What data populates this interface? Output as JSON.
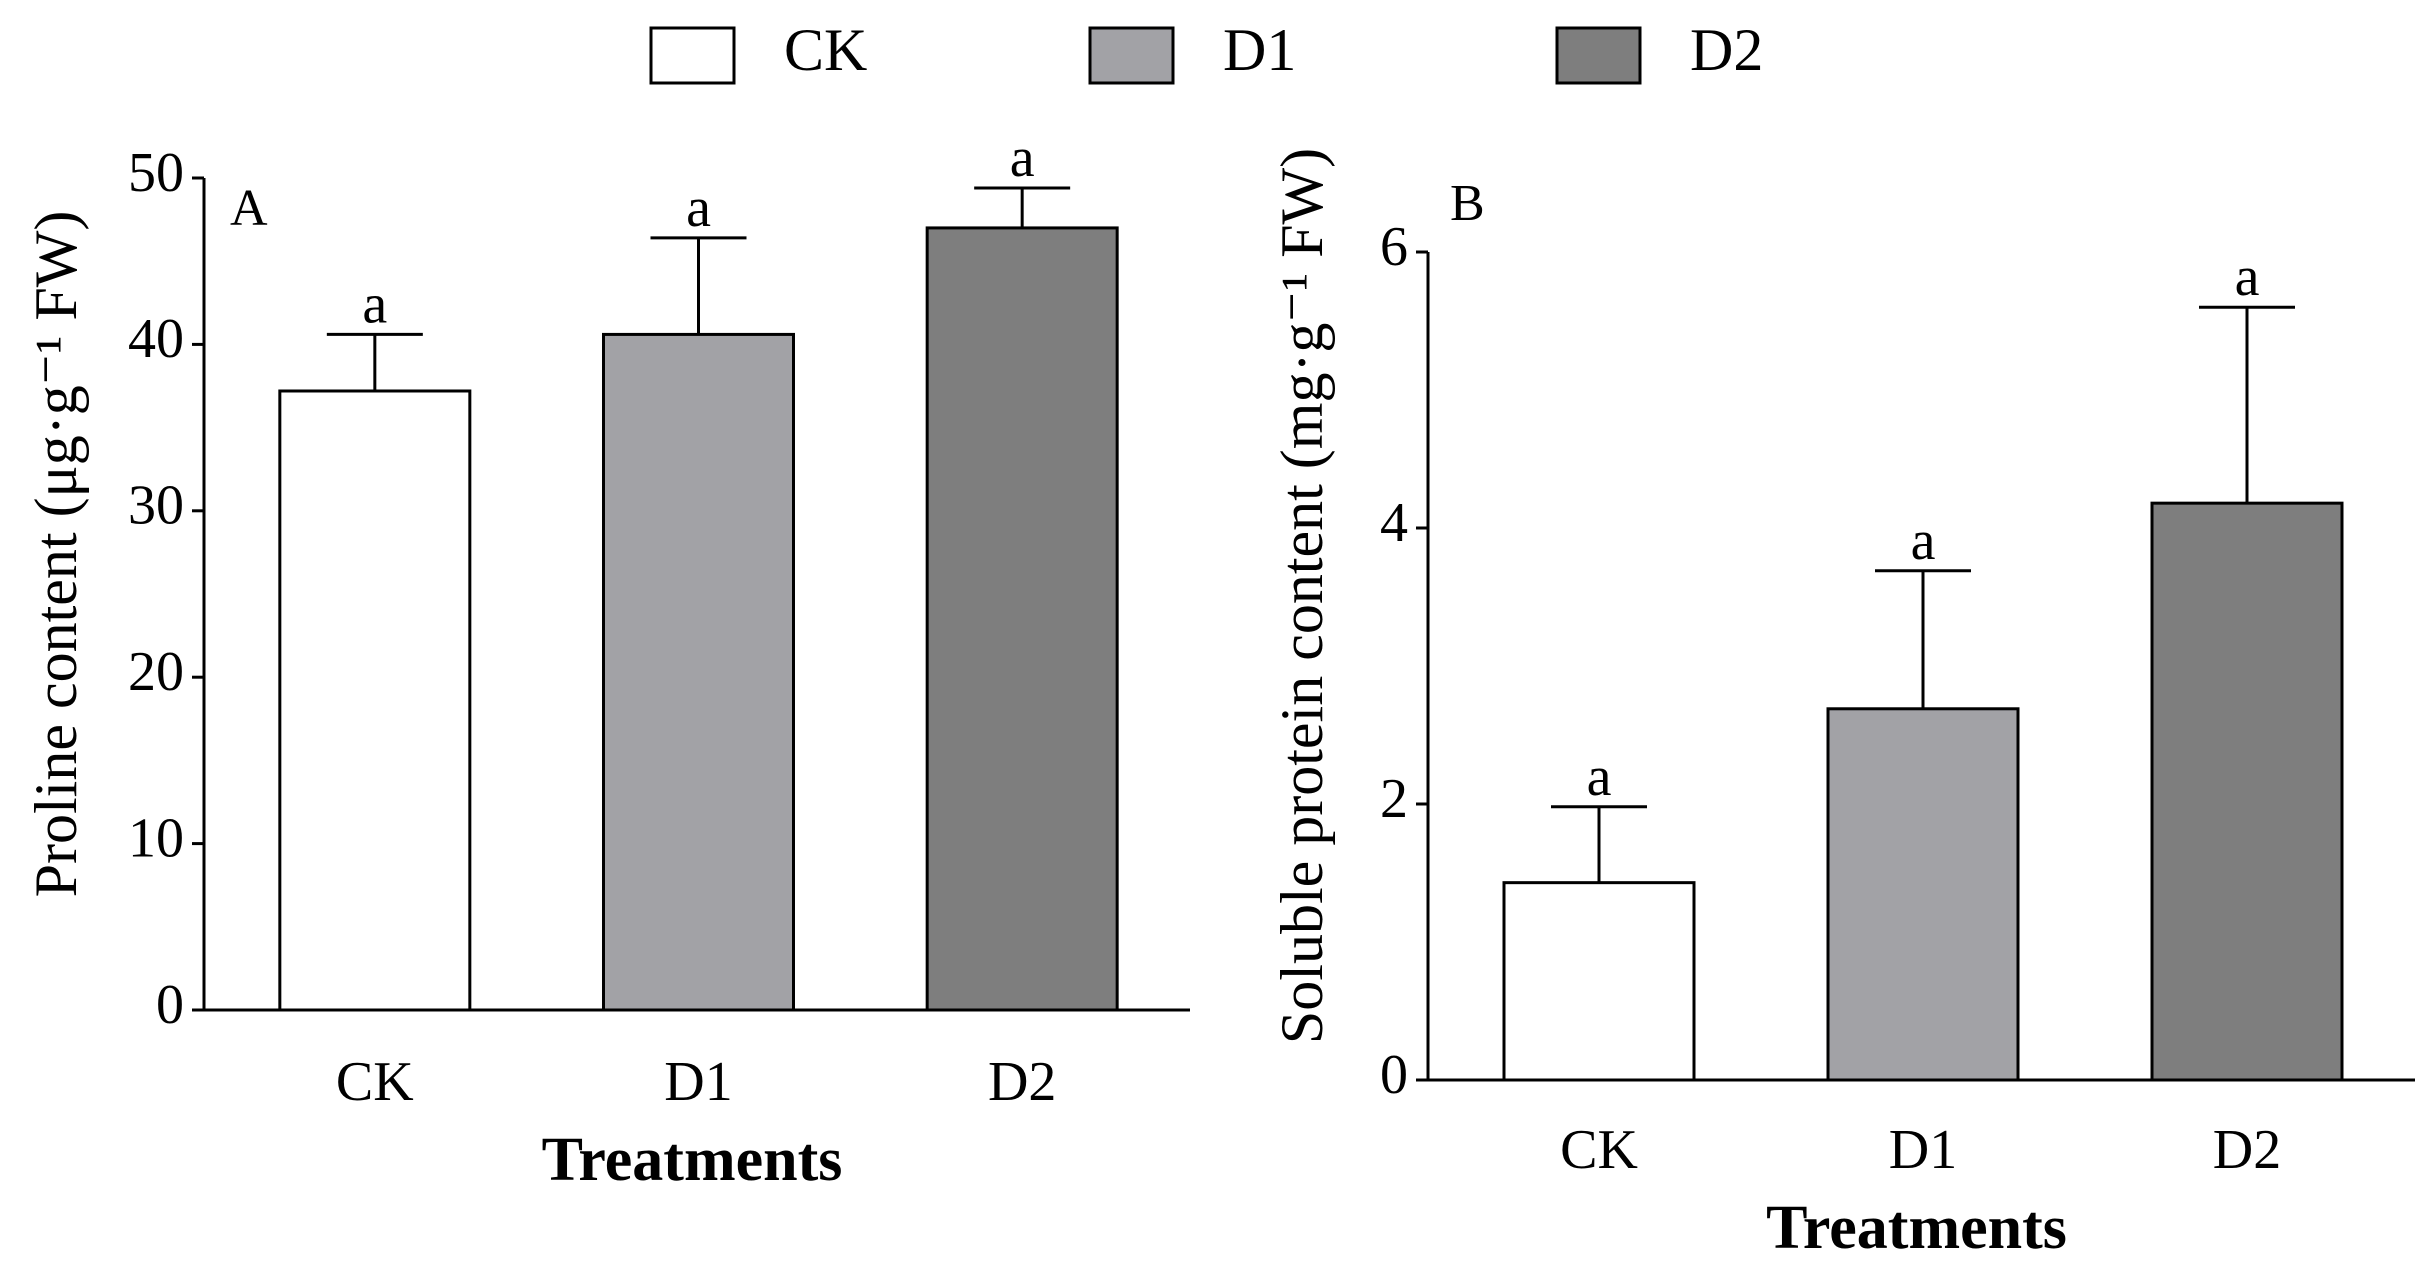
{
  "legend": {
    "items": [
      {
        "label": "CK",
        "color": "#ffffff"
      },
      {
        "label": "D1",
        "color": "#a2a2a6"
      },
      {
        "label": "D2",
        "color": "#7e7e7e"
      }
    ],
    "placement": "top-center"
  },
  "chart_data": [
    {
      "panel": "A",
      "type": "bar",
      "categories": [
        "CK",
        "D1",
        "D2"
      ],
      "values": [
        37.2,
        40.6,
        47.0
      ],
      "errors": [
        3.4,
        5.8,
        2.4
      ],
      "significance": [
        "a",
        "a",
        "a"
      ],
      "colors": [
        "#ffffff",
        "#a2a2a6",
        "#7e7e7e"
      ],
      "xlabel": "Treatments",
      "ylabel": "Proline content (μg·g⁻¹ FW)",
      "ylim": [
        0,
        50
      ],
      "yticks": [
        "0",
        "10",
        "20",
        "30",
        "40",
        "50"
      ],
      "grid": false
    },
    {
      "panel": "B",
      "type": "bar",
      "categories": [
        "CK",
        "D1",
        "D2"
      ],
      "values": [
        1.43,
        2.69,
        4.18
      ],
      "errors": [
        0.55,
        1.0,
        1.42
      ],
      "significance": [
        "a",
        "a",
        "a"
      ],
      "colors": [
        "#ffffff",
        "#a2a2a6",
        "#7e7e7e"
      ],
      "xlabel": "Treatments",
      "ylabel": "Soluble protein content (mg·g⁻¹ FW)",
      "ylim": [
        0,
        6
      ],
      "yticks": [
        "0",
        "2",
        "4",
        "6"
      ],
      "grid": false
    }
  ]
}
